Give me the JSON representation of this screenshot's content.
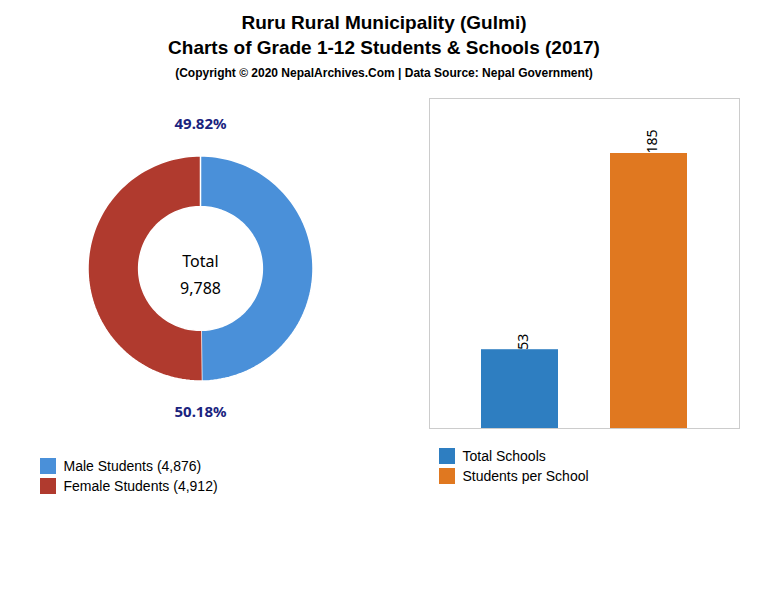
{
  "title": "Ruru Rural Municipality (Gulmi)\nCharts of Grade 1-12 Students & Schools (2017)",
  "subtitle": "(Copyright © 2020 NepalArchives.Com | Data Source: Nepal Government)",
  "chart_data": [
    {
      "type": "pie",
      "categories": [
        "Male Students (4,876)",
        "Female Students (4,912)"
      ],
      "values": [
        49.82,
        50.18
      ],
      "value_labels": [
        "49.82%",
        "50.18%"
      ],
      "colors": [
        "#4a90d9",
        "#b03a2e"
      ],
      "data_labels": true,
      "annotations": [
        "Total",
        "9,788"
      ],
      "legend": "bottom"
    },
    {
      "type": "bar",
      "categories": [
        "Total Schools",
        "Students per School"
      ],
      "values": [
        53,
        185
      ],
      "colors": [
        "#2e7ec1",
        "#e07820"
      ],
      "ylim": [
        0,
        222
      ],
      "data_labels": true,
      "tick_labels": false,
      "legend": "bottom"
    }
  ]
}
